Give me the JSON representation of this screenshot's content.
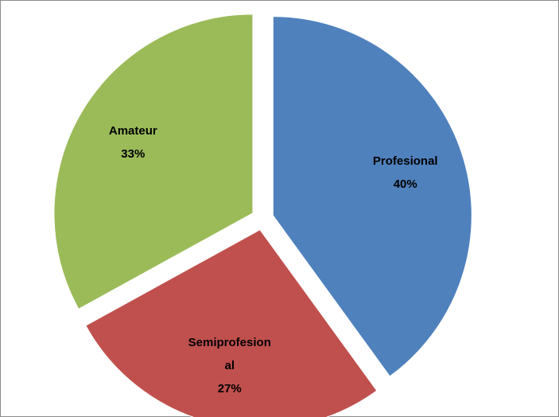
{
  "chart_data": {
    "type": "pie",
    "categories": [
      "Profesional",
      "Semiprofesional",
      "Amateur"
    ],
    "values": [
      40,
      27,
      33
    ],
    "value_labels": [
      "40%",
      "27%",
      "33%"
    ],
    "colors": [
      "#4f81bd",
      "#c0504d",
      "#9bbb59"
    ]
  }
}
